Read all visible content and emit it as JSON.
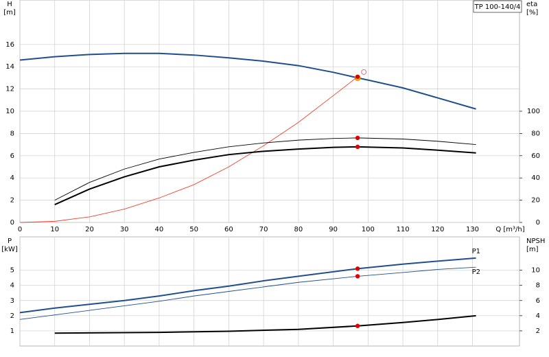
{
  "legend_box": "TP 100-140/4",
  "chart_data": [
    {
      "type": "line",
      "x_label": "Q [m³/h]",
      "y_label": "H",
      "y_unit": "[m]",
      "y2_label": "eta",
      "y2_unit": "[%]",
      "xlim": [
        0,
        143.5
      ],
      "ylim": [
        0,
        20
      ],
      "y2lim": [
        0,
        200
      ],
      "xticks": [
        0,
        10,
        20,
        30,
        40,
        50,
        60,
        70,
        80,
        90,
        100,
        110,
        120,
        130
      ],
      "yticks": [
        0,
        2,
        4,
        6,
        8,
        10,
        12,
        14,
        16
      ],
      "y2ticks": [
        0,
        20,
        40,
        60,
        80,
        100
      ],
      "grid": true,
      "duty_q": 97,
      "series": [
        {
          "color": "#1f4e8c",
          "style": "thick",
          "x": [
            0,
            10,
            20,
            30,
            40,
            50,
            60,
            70,
            80,
            90,
            97,
            100,
            110,
            120,
            131
          ],
          "values": [
            14.6,
            14.9,
            15.1,
            15.2,
            15.2,
            15.05,
            14.8,
            14.5,
            14.1,
            13.5,
            13.0,
            12.8,
            12.1,
            11.2,
            10.2
          ]
        },
        {
          "color": "#f04030",
          "style": "thin",
          "x": [
            0,
            10,
            20,
            30,
            40,
            50,
            60,
            70,
            80,
            90,
            97
          ],
          "values": [
            0,
            0.1,
            0.5,
            1.2,
            2.2,
            3.4,
            5.0,
            6.9,
            9.0,
            11.4,
            13.1
          ]
        },
        {
          "color": "#000000",
          "style": "thin",
          "axis": "y2",
          "x": [
            10,
            20,
            30,
            40,
            50,
            60,
            70,
            80,
            90,
            97,
            110,
            120,
            131
          ],
          "values": [
            20,
            36,
            48,
            57,
            63,
            68,
            71.5,
            74,
            75.5,
            76,
            75,
            73,
            70
          ]
        },
        {
          "color": "#000000",
          "style": "thick",
          "axis": "y2",
          "x": [
            10,
            20,
            30,
            40,
            50,
            60,
            70,
            80,
            90,
            97,
            110,
            120,
            131
          ],
          "values": [
            16,
            30,
            41,
            50,
            56,
            61,
            64,
            66,
            67.5,
            68,
            67,
            65,
            62.5
          ]
        }
      ],
      "setpoint": {
        "x": 98,
        "y": 13.4
      }
    },
    {
      "type": "line",
      "y_label": "P",
      "y_unit": "[kW]",
      "y2_label": "NPSH",
      "y2_unit": "[m]",
      "xlim": [
        0,
        143.5
      ],
      "ylim": [
        0,
        7.2
      ],
      "y2lim": [
        0,
        14.4
      ],
      "xticks": [
        0,
        10,
        20,
        30,
        40,
        50,
        60,
        70,
        80,
        90,
        100,
        110,
        120,
        130
      ],
      "yticks": [
        1,
        2,
        3,
        4,
        5
      ],
      "y2ticks": [
        2,
        4,
        6,
        8,
        10
      ],
      "grid": true,
      "duty_q": 97,
      "series": [
        {
          "name": "P1",
          "color": "#1f4e8c",
          "style": "thick",
          "x": [
            0,
            10,
            20,
            30,
            40,
            50,
            60,
            70,
            80,
            97,
            110,
            120,
            131
          ],
          "values": [
            2.2,
            2.5,
            2.75,
            3.0,
            3.3,
            3.65,
            3.95,
            4.3,
            4.6,
            5.1,
            5.4,
            5.6,
            5.8
          ]
        },
        {
          "name": "P2",
          "color": "#1f4e8c",
          "style": "thin",
          "x": [
            0,
            10,
            20,
            30,
            40,
            50,
            60,
            70,
            80,
            97,
            110,
            120,
            131
          ],
          "values": [
            1.75,
            2.05,
            2.35,
            2.65,
            2.95,
            3.3,
            3.6,
            3.9,
            4.2,
            4.6,
            4.85,
            5.05,
            5.2
          ]
        },
        {
          "color": "#000000",
          "style": "thick",
          "axis": "y2",
          "x": [
            10,
            40,
            60,
            80,
            97,
            110,
            120,
            131
          ],
          "values": [
            1.7,
            1.8,
            1.95,
            2.2,
            2.65,
            3.1,
            3.5,
            4.0
          ]
        }
      ]
    }
  ]
}
